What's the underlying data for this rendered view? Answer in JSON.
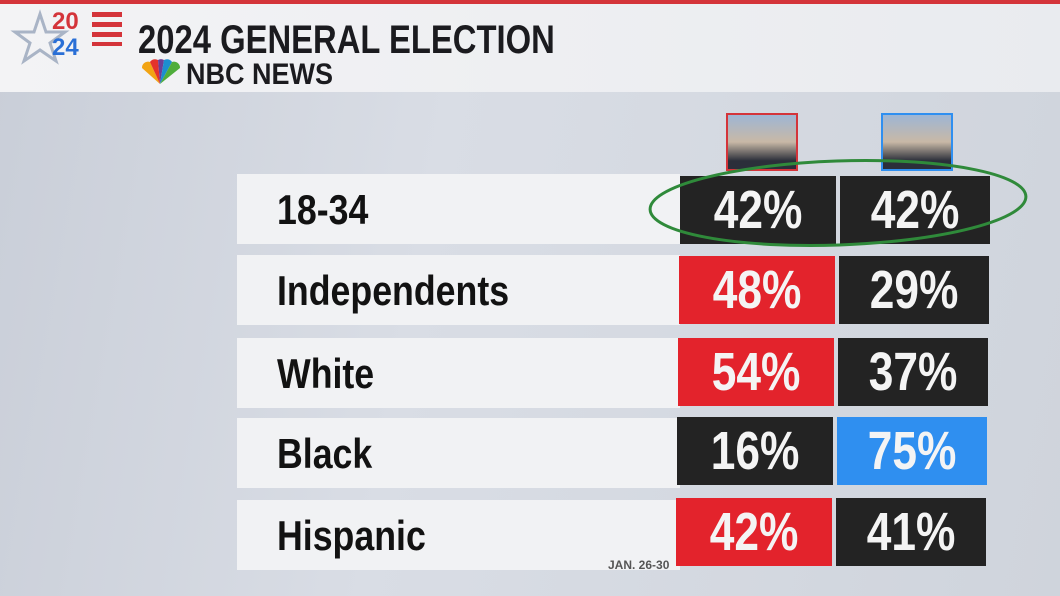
{
  "header": {
    "logo": [
      "20",
      "24"
    ],
    "title": "2024 GENERAL ELECTION",
    "network": "NBC NEWS"
  },
  "table": {
    "rows": [
      {
        "label": "18-34",
        "cells": [
          {
            "text": "42%",
            "color": "#232323"
          },
          {
            "text": "42%",
            "color": "#232323"
          }
        ]
      },
      {
        "label": "Independents",
        "cells": [
          {
            "text": "48%",
            "color": "#e3232c"
          },
          {
            "text": "29%",
            "color": "#232323"
          }
        ]
      },
      {
        "label": "White",
        "cells": [
          {
            "text": "54%",
            "color": "#e3232c"
          },
          {
            "text": "37%",
            "color": "#232323"
          }
        ]
      },
      {
        "label": "Black",
        "cells": [
          {
            "text": "16%",
            "color": "#232323"
          },
          {
            "text": "75%",
            "color": "#2f8ff0"
          }
        ]
      },
      {
        "label": "Hispanic",
        "cells": [
          {
            "text": "42%",
            "color": "#e3232c"
          },
          {
            "text": "41%",
            "color": "#232323"
          }
        ]
      }
    ]
  },
  "footer": {
    "date": "JAN. 26-30"
  }
}
